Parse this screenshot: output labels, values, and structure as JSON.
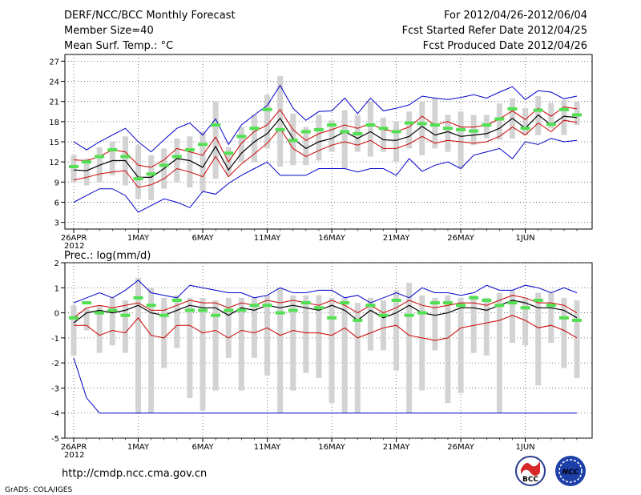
{
  "header": {
    "title": "DERF/NCC/BCC Monthly Forecast",
    "member_size": "Member Size=40",
    "variable": "Mean Surf. Temp.: °C",
    "period": "For 2012/04/26-2012/06/04",
    "refer_date": "Fcst Started Refer Date 2012/04/25",
    "produced_date": "Fcst Produced Date 2012/04/26"
  },
  "footer": {
    "url": "http://cmdp.ncc.cma.gov.cn",
    "credit": "GrADS: COLA/IGES",
    "logo_bcc": "BCC",
    "logo_ncc": "NCC"
  },
  "colors": {
    "box": "#d3d3d3",
    "median": "#52e052",
    "mean": "#000000",
    "std": "#cc0000",
    "extreme": "#0000cc"
  },
  "chart_data": [
    {
      "type": "line",
      "name": "temperature",
      "title": "Mean Surf. Temp.: °C",
      "ylim": [
        2,
        28
      ],
      "yticks": [
        3,
        6,
        9,
        12,
        15,
        18,
        21,
        24,
        27
      ],
      "xlim": [
        0,
        39
      ],
      "x_ticks": [
        {
          "x": 0,
          "label": "26APR",
          "sub": "2012"
        },
        {
          "x": 5,
          "label": "1MAY"
        },
        {
          "x": 10,
          "label": "6MAY"
        },
        {
          "x": 15,
          "label": "11MAY"
        },
        {
          "x": 20,
          "label": "16MAY"
        },
        {
          "x": 25,
          "label": "21MAY"
        },
        {
          "x": 30,
          "label": "26MAY"
        },
        {
          "x": 35,
          "label": "1JUN"
        }
      ],
      "series": [
        {
          "name": "max",
          "values": [
            15.0,
            13.8,
            15.0,
            16.0,
            17.0,
            15.0,
            13.5,
            15.3,
            17.0,
            17.8,
            16.0,
            18.4,
            14.6,
            17.5,
            19.0,
            20.4,
            23.4,
            20.0,
            18.2,
            19.5,
            19.6,
            21.5,
            19.2,
            21.5,
            19.6,
            20.0,
            20.5,
            21.8,
            21.5,
            21.3,
            21.6,
            22.0,
            21.5,
            22.4,
            23.2,
            21.3,
            22.6,
            22.4,
            21.4,
            21.8
          ]
        },
        {
          "name": "mean_plus_std",
          "values": [
            12.3,
            12.2,
            12.8,
            13.8,
            13.5,
            11.5,
            11.2,
            12.3,
            14.0,
            13.5,
            13.0,
            15.7,
            12.0,
            14.8,
            16.5,
            17.5,
            19.8,
            16.8,
            15.2,
            16.2,
            16.8,
            17.5,
            17.0,
            17.7,
            16.8,
            16.5,
            17.2,
            18.8,
            17.5,
            18.0,
            17.2,
            17.2,
            17.5,
            18.4,
            19.6,
            18.3,
            20.0,
            18.8,
            20.2,
            19.9
          ]
        },
        {
          "name": "mean",
          "values": [
            10.8,
            10.7,
            11.5,
            12.2,
            12.2,
            9.7,
            9.7,
            11.0,
            12.5,
            12.2,
            11.2,
            14.3,
            10.8,
            13.3,
            15.0,
            16.2,
            18.5,
            15.5,
            14.0,
            15.0,
            15.5,
            16.5,
            15.5,
            16.5,
            15.3,
            15.2,
            15.8,
            17.3,
            16.0,
            16.5,
            15.8,
            16.0,
            16.2,
            17.0,
            18.5,
            17.0,
            19.0,
            17.5,
            18.8,
            18.6
          ]
        },
        {
          "name": "mean_minus_std",
          "values": [
            9.3,
            9.7,
            10.2,
            10.5,
            10.7,
            8.2,
            8.6,
            9.5,
            11.0,
            10.5,
            9.8,
            12.8,
            9.8,
            11.7,
            13.2,
            14.8,
            17.0,
            14.0,
            12.8,
            13.7,
            14.5,
            15.0,
            14.5,
            15.2,
            14.0,
            14.0,
            14.7,
            15.8,
            14.8,
            15.2,
            15.0,
            14.8,
            15.0,
            15.8,
            17.2,
            16.0,
            17.8,
            16.5,
            18.2,
            17.9
          ]
        },
        {
          "name": "min",
          "values": [
            6.0,
            7.0,
            8.0,
            8.0,
            7.0,
            4.5,
            5.5,
            6.5,
            6.0,
            5.2,
            7.6,
            7.2,
            8.8,
            10.0,
            11.0,
            12.0,
            10.0,
            10.0,
            10.0,
            11.0,
            11.0,
            11.0,
            10.5,
            11.0,
            11.0,
            10.0,
            12.5,
            10.6,
            11.5,
            12.0,
            11.0,
            13.0,
            13.5,
            14.0,
            12.5,
            15.0,
            14.6,
            15.5,
            15.0,
            15.2
          ]
        },
        {
          "name": "median",
          "values": [
            11.3,
            12.0,
            12.8,
            13.8,
            12.8,
            9.5,
            10.2,
            11.5,
            12.8,
            13.8,
            14.6,
            17.5,
            13.3,
            15.8,
            17.0,
            19.8,
            16.8,
            15.2,
            16.5,
            16.8,
            17.5,
            16.5,
            16.2,
            17.5,
            17.0,
            16.5,
            17.8,
            17.7,
            17.5,
            17.0,
            16.8,
            16.6,
            17.5,
            18.4,
            19.9,
            17.0,
            19.7,
            17.6,
            19.8,
            19.0
          ]
        },
        {
          "name": "box_high",
          "values": [
            13.0,
            12.5,
            14.2,
            15.0,
            15.8,
            14.5,
            13.0,
            14.0,
            15.5,
            15.8,
            16.5,
            21.0,
            14.2,
            17.2,
            19.0,
            22.0,
            24.8,
            19.2,
            17.2,
            19.0,
            18.2,
            19.7,
            19.0,
            21.0,
            18.6,
            18.0,
            19.5,
            21.0,
            21.5,
            19.0,
            19.5,
            19.0,
            19.0,
            20.7,
            21.5,
            20.0,
            21.8,
            20.8,
            21.2,
            21.0
          ]
        },
        {
          "name": "box_low",
          "values": [
            9.0,
            8.5,
            9.0,
            10.0,
            8.5,
            6.5,
            6.3,
            8.0,
            9.0,
            8.2,
            7.6,
            9.5,
            10.0,
            12.0,
            12.0,
            14.0,
            11.3,
            11.5,
            11.5,
            12.2,
            13.5,
            11.0,
            13.5,
            12.8,
            13.5,
            12.0,
            14.0,
            13.0,
            14.0,
            13.5,
            11.0,
            14.5,
            15.5,
            15.3,
            15.5,
            16.0,
            16.0,
            17.0,
            16.0,
            17.5
          ]
        }
      ]
    },
    {
      "type": "line",
      "name": "precipitation",
      "title": "Prec.: log(mm/d)",
      "ylim": [
        -5,
        2
      ],
      "yticks": [
        -5,
        -4,
        -3,
        -2,
        -1,
        0,
        1,
        2
      ],
      "xlim": [
        0,
        39
      ],
      "x_ticks": [
        {
          "x": 0,
          "label": "26APR",
          "sub": "2012"
        },
        {
          "x": 5,
          "label": "1MAY"
        },
        {
          "x": 10,
          "label": "6MAY"
        },
        {
          "x": 15,
          "label": "11MAY"
        },
        {
          "x": 20,
          "label": "16MAY"
        },
        {
          "x": 25,
          "label": "21MAY"
        },
        {
          "x": 30,
          "label": "26MAY"
        },
        {
          "x": 35,
          "label": "1JUN"
        }
      ],
      "series": [
        {
          "name": "max",
          "values": [
            0.4,
            0.6,
            0.8,
            0.6,
            0.9,
            1.3,
            0.8,
            0.7,
            0.6,
            1.1,
            1.0,
            0.9,
            0.8,
            0.8,
            0.6,
            0.7,
            1.0,
            0.8,
            0.8,
            0.9,
            0.9,
            0.6,
            0.7,
            0.4,
            0.6,
            0.8,
            0.6,
            1.0,
            0.8,
            0.8,
            0.7,
            0.8,
            1.1,
            0.9,
            0.9,
            1.1,
            1.0,
            0.8,
            1.0,
            0.8
          ]
        },
        {
          "name": "mean_plus_std",
          "values": [
            -0.2,
            0.2,
            0.3,
            0.2,
            0.3,
            0.4,
            0.1,
            0.1,
            0.3,
            0.5,
            0.4,
            0.4,
            0.2,
            0.4,
            0.3,
            0.5,
            0.4,
            0.5,
            0.4,
            0.3,
            0.5,
            0.3,
            0.0,
            0.3,
            0.0,
            0.2,
            0.5,
            0.3,
            0.2,
            0.3,
            0.4,
            0.4,
            0.3,
            0.5,
            0.7,
            0.6,
            0.4,
            0.4,
            0.3,
            0.0
          ]
        },
        {
          "name": "mean",
          "values": [
            -0.4,
            0.0,
            0.1,
            0.0,
            0.1,
            0.3,
            0.0,
            -0.1,
            0.1,
            0.3,
            0.2,
            0.2,
            -0.1,
            0.2,
            0.1,
            0.3,
            0.2,
            0.3,
            0.2,
            0.1,
            0.3,
            0.1,
            -0.3,
            0.1,
            -0.2,
            0.0,
            0.3,
            0.0,
            -0.1,
            0.0,
            0.2,
            0.2,
            0.1,
            0.3,
            0.5,
            0.4,
            0.2,
            0.2,
            0.1,
            -0.2
          ]
        },
        {
          "name": "mean_minus_std",
          "values": [
            -0.5,
            -0.5,
            -0.9,
            -0.7,
            -0.8,
            -0.2,
            -0.9,
            -1.0,
            -0.5,
            -0.5,
            -0.8,
            -0.7,
            -1.0,
            -0.7,
            -0.8,
            -0.6,
            -0.9,
            -0.7,
            -0.8,
            -0.8,
            -0.9,
            -0.6,
            -1.0,
            -0.8,
            -0.6,
            -0.5,
            -0.9,
            -1.0,
            -1.1,
            -1.0,
            -0.6,
            -0.5,
            -0.4,
            -0.3,
            -0.1,
            -0.3,
            -0.6,
            -0.5,
            -0.7,
            -1.0
          ]
        },
        {
          "name": "min",
          "values": [
            -1.8,
            -3.4,
            -4.0,
            -4.0,
            -4.0,
            -4.0,
            -4.0,
            -4.0,
            -4.0,
            -4.0,
            -4.0,
            -4.0,
            -4.0,
            -4.0,
            -4.0,
            -4.0,
            -4.0,
            -4.0,
            -4.0,
            -4.0,
            -4.0,
            -4.0,
            -4.0,
            -4.0,
            -4.0,
            -4.0,
            -4.0,
            -4.0,
            -4.0,
            -4.0,
            -4.0,
            -4.0,
            -4.0,
            -4.0,
            -4.0,
            -4.0,
            -4.0,
            -4.0,
            -4.0,
            -4.0
          ]
        },
        {
          "name": "median",
          "values": [
            -0.2,
            0.4,
            0.0,
            0.1,
            -0.1,
            0.6,
            0.3,
            -0.1,
            0.5,
            0.1,
            0.1,
            -0.1,
            0.1,
            0.1,
            0.3,
            0.3,
            0.0,
            0.1,
            0.4,
            0.2,
            -0.2,
            0.4,
            -0.3,
            0.3,
            -0.1,
            0.5,
            -0.1,
            0.0,
            0.4,
            0.4,
            0.3,
            0.6,
            0.5,
            0.3,
            0.4,
            0.2,
            0.5,
            0.3,
            -0.2,
            -0.3
          ]
        },
        {
          "name": "box_high",
          "values": [
            0.3,
            0.2,
            0.3,
            0.6,
            0.5,
            1.4,
            1.0,
            0.6,
            0.7,
            0.6,
            0.6,
            0.5,
            0.6,
            0.6,
            0.6,
            0.7,
            1.0,
            0.7,
            0.7,
            0.7,
            0.6,
            0.6,
            0.4,
            0.6,
            0.5,
            0.9,
            1.2,
            0.7,
            0.6,
            0.7,
            0.6,
            0.7,
            0.6,
            0.8,
            0.9,
            0.6,
            0.8,
            0.8,
            0.6,
            0.5
          ]
        },
        {
          "name": "box_low",
          "values": [
            -1.7,
            -0.7,
            -1.6,
            -1.3,
            -1.6,
            -4.0,
            -4.0,
            -2.2,
            -1.4,
            -3.4,
            -3.9,
            -3.1,
            -1.8,
            -3.1,
            -1.8,
            -2.5,
            -4.0,
            -3.1,
            -2.4,
            -2.6,
            -3.6,
            -4.0,
            -4.0,
            -1.5,
            -1.5,
            -2.3,
            -4.0,
            -3.1,
            -1.5,
            -3.6,
            -3.2,
            -1.6,
            -1.7,
            -4.0,
            -1.2,
            -1.3,
            -2.9,
            -1.2,
            -2.2,
            -2.6
          ]
        }
      ]
    }
  ]
}
